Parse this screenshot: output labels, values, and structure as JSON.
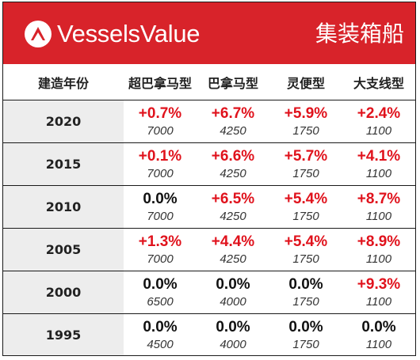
{
  "brand": {
    "name": "VesselsValue"
  },
  "category": "集装箱船",
  "colors": {
    "banner": "#d8232a",
    "positive": "#e0121c",
    "neutral": "#111111",
    "year_column": "#ededed"
  },
  "table": {
    "headers": [
      "建造年份",
      "超巴拿马型",
      "巴拿马型",
      "灵便型",
      "大支线型"
    ],
    "rows": [
      {
        "year": "2020",
        "cells": [
          {
            "change": "+0.7%",
            "value": "7000"
          },
          {
            "change": "+6.7%",
            "value": "4250"
          },
          {
            "change": "+5.9%",
            "value": "1750"
          },
          {
            "change": "+2.4%",
            "value": "1100"
          }
        ]
      },
      {
        "year": "2015",
        "cells": [
          {
            "change": "+0.1%",
            "value": "7000"
          },
          {
            "change": "+6.6%",
            "value": "4250"
          },
          {
            "change": "+5.7%",
            "value": "1750"
          },
          {
            "change": "+4.1%",
            "value": "1100"
          }
        ]
      },
      {
        "year": "2010",
        "cells": [
          {
            "change": "0.0%",
            "value": "7000"
          },
          {
            "change": "+6.5%",
            "value": "4250"
          },
          {
            "change": "+5.4%",
            "value": "1750"
          },
          {
            "change": "+8.7%",
            "value": "1100"
          }
        ]
      },
      {
        "year": "2005",
        "cells": [
          {
            "change": "+1.3%",
            "value": "7000"
          },
          {
            "change": "+4.4%",
            "value": "4250"
          },
          {
            "change": "+5.4%",
            "value": "1750"
          },
          {
            "change": "+8.9%",
            "value": "1100"
          }
        ]
      },
      {
        "year": "2000",
        "cells": [
          {
            "change": "0.0%",
            "value": "6500"
          },
          {
            "change": "0.0%",
            "value": "4000"
          },
          {
            "change": "0.0%",
            "value": "1750"
          },
          {
            "change": "+9.3%",
            "value": "1100"
          }
        ]
      },
      {
        "year": "1995",
        "cells": [
          {
            "change": "0.0%",
            "value": "4500"
          },
          {
            "change": "0.0%",
            "value": "4000"
          },
          {
            "change": "0.0%",
            "value": "1750"
          },
          {
            "change": "0.0%",
            "value": "1100"
          }
        ]
      }
    ]
  }
}
